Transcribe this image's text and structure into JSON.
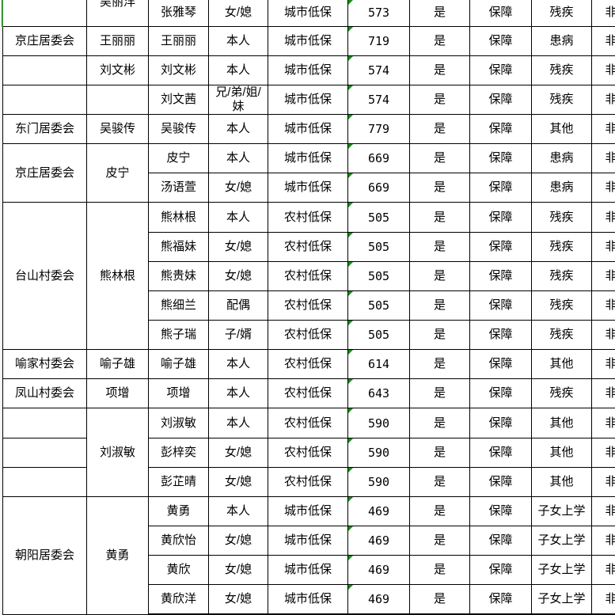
{
  "colors": {
    "border": "#000000",
    "error_indicator_green": "#129212",
    "left_edge_green": "#3c9639",
    "gridline_gray": "#e4e4e4"
  },
  "table": {
    "rows": [
      {
        "partial": true,
        "cells": [
          {
            "text": ""
          },
          {
            "text": "吴丽洋",
            "clipped_top": true
          },
          {
            "text": "张雅琴"
          },
          {
            "text": "女/媳"
          },
          {
            "text": "城市低保"
          },
          {
            "text": "573"
          },
          {
            "text": "是"
          },
          {
            "text": "保障"
          },
          {
            "text": "残疾"
          },
          {
            "text": "非常补"
          }
        ]
      },
      {
        "cells": [
          {
            "text": "京庄居委会"
          },
          {
            "text": "王丽丽"
          },
          {
            "text": "王丽丽"
          },
          {
            "text": "本人"
          },
          {
            "text": "城市低保"
          },
          {
            "text": "719"
          },
          {
            "text": "是"
          },
          {
            "text": "保障"
          },
          {
            "text": "患病"
          },
          {
            "text": "非常补"
          }
        ]
      },
      {
        "cells": [
          {
            "text": ""
          },
          {
            "text": "刘文彬"
          },
          {
            "text": "刘文彬"
          },
          {
            "text": "本人"
          },
          {
            "text": "城市低保"
          },
          {
            "text": "574"
          },
          {
            "text": "是"
          },
          {
            "text": "保障"
          },
          {
            "text": "残疾"
          },
          {
            "text": "非常补"
          }
        ]
      },
      {
        "cells": [
          {
            "text": ""
          },
          {
            "text": ""
          },
          {
            "text": "刘文茜"
          },
          {
            "text": "兄/弟/姐/妹"
          },
          {
            "text": "城市低保"
          },
          {
            "text": "574"
          },
          {
            "text": "是"
          },
          {
            "text": "保障"
          },
          {
            "text": "残疾"
          },
          {
            "text": "非常补"
          }
        ]
      },
      {
        "cells": [
          {
            "text": "东门居委会"
          },
          {
            "text": "吴骏传"
          },
          {
            "text": "吴骏传"
          },
          {
            "text": "本人"
          },
          {
            "text": "城市低保"
          },
          {
            "text": "779"
          },
          {
            "text": "是"
          },
          {
            "text": "保障"
          },
          {
            "text": "其他"
          },
          {
            "text": "非常补"
          }
        ]
      },
      {
        "cells": [
          {
            "text": "京庄居委会",
            "rowspan": 2
          },
          {
            "text": "皮宁",
            "rowspan": 2
          },
          {
            "text": "皮宁"
          },
          {
            "text": "本人"
          },
          {
            "text": "城市低保"
          },
          {
            "text": "669"
          },
          {
            "text": "是"
          },
          {
            "text": "保障"
          },
          {
            "text": "患病"
          },
          {
            "text": "非常补"
          }
        ]
      },
      {
        "cells": [
          {
            "text": "汤语萱"
          },
          {
            "text": "女/媳"
          },
          {
            "text": "城市低保"
          },
          {
            "text": "669"
          },
          {
            "text": "是"
          },
          {
            "text": "保障"
          },
          {
            "text": "患病"
          },
          {
            "text": "非常补"
          }
        ]
      },
      {
        "cells": [
          {
            "text": "台山村委会",
            "rowspan": 5
          },
          {
            "text": "熊林根",
            "rowspan": 5
          },
          {
            "text": "熊林根"
          },
          {
            "text": "本人"
          },
          {
            "text": "农村低保"
          },
          {
            "text": "505"
          },
          {
            "text": "是"
          },
          {
            "text": "保障"
          },
          {
            "text": "残疾"
          },
          {
            "text": "非常补"
          }
        ]
      },
      {
        "cells": [
          {
            "text": "熊福妹"
          },
          {
            "text": "女/媳"
          },
          {
            "text": "农村低保"
          },
          {
            "text": "505"
          },
          {
            "text": "是"
          },
          {
            "text": "保障"
          },
          {
            "text": "残疾"
          },
          {
            "text": "非常补"
          }
        ]
      },
      {
        "cells": [
          {
            "text": "熊贵妹"
          },
          {
            "text": "女/媳"
          },
          {
            "text": "农村低保"
          },
          {
            "text": "505"
          },
          {
            "text": "是"
          },
          {
            "text": "保障"
          },
          {
            "text": "残疾"
          },
          {
            "text": "非常补"
          }
        ]
      },
      {
        "cells": [
          {
            "text": "熊细兰"
          },
          {
            "text": "配偶"
          },
          {
            "text": "农村低保"
          },
          {
            "text": "505"
          },
          {
            "text": "是"
          },
          {
            "text": "保障"
          },
          {
            "text": "残疾"
          },
          {
            "text": "非常补"
          }
        ]
      },
      {
        "cells": [
          {
            "text": "熊子瑞"
          },
          {
            "text": "子/婿"
          },
          {
            "text": "农村低保"
          },
          {
            "text": "505"
          },
          {
            "text": "是"
          },
          {
            "text": "保障"
          },
          {
            "text": "残疾"
          },
          {
            "text": "非常补"
          }
        ]
      },
      {
        "cells": [
          {
            "text": "喻家村委会"
          },
          {
            "text": "喻子雄"
          },
          {
            "text": "喻子雄"
          },
          {
            "text": "本人"
          },
          {
            "text": "农村低保"
          },
          {
            "text": "614"
          },
          {
            "text": "是"
          },
          {
            "text": "保障"
          },
          {
            "text": "其他"
          },
          {
            "text": "非常补"
          }
        ]
      },
      {
        "cells": [
          {
            "text": "凤山村委会"
          },
          {
            "text": "项增"
          },
          {
            "text": "项增"
          },
          {
            "text": "本人"
          },
          {
            "text": "农村低保"
          },
          {
            "text": "643"
          },
          {
            "text": "是"
          },
          {
            "text": "保障"
          },
          {
            "text": "残疾"
          },
          {
            "text": "非常补"
          }
        ]
      },
      {
        "cells": [
          {
            "text": ""
          },
          {
            "text": "刘淑敏",
            "rowspan": 3
          },
          {
            "text": "刘淑敏"
          },
          {
            "text": "本人"
          },
          {
            "text": "农村低保"
          },
          {
            "text": "590"
          },
          {
            "text": "是"
          },
          {
            "text": "保障"
          },
          {
            "text": "其他"
          },
          {
            "text": "非常补"
          }
        ]
      },
      {
        "cells": [
          {
            "text": ""
          },
          {
            "text": "彭梓奕"
          },
          {
            "text": "女/媳"
          },
          {
            "text": "农村低保"
          },
          {
            "text": "590"
          },
          {
            "text": "是"
          },
          {
            "text": "保障"
          },
          {
            "text": "其他"
          },
          {
            "text": "非常补"
          }
        ]
      },
      {
        "cells": [
          {
            "text": ""
          },
          {
            "text": "彭芷晴"
          },
          {
            "text": "女/媳"
          },
          {
            "text": "农村低保"
          },
          {
            "text": "590"
          },
          {
            "text": "是"
          },
          {
            "text": "保障"
          },
          {
            "text": "其他"
          },
          {
            "text": "非常补"
          }
        ]
      },
      {
        "cells": [
          {
            "text": "朝阳居委会",
            "rowspan": 4
          },
          {
            "text": "黄勇",
            "rowspan": 4
          },
          {
            "text": "黄勇"
          },
          {
            "text": "本人"
          },
          {
            "text": "城市低保"
          },
          {
            "text": "469"
          },
          {
            "text": "是"
          },
          {
            "text": "保障"
          },
          {
            "text": "子女上学"
          },
          {
            "text": "非常补"
          }
        ]
      },
      {
        "cells": [
          {
            "text": "黄欣怡"
          },
          {
            "text": "女/媳"
          },
          {
            "text": "城市低保"
          },
          {
            "text": "469"
          },
          {
            "text": "是"
          },
          {
            "text": "保障"
          },
          {
            "text": "子女上学"
          },
          {
            "text": "非常补"
          }
        ]
      },
      {
        "cells": [
          {
            "text": "黄欣"
          },
          {
            "text": "女/媳"
          },
          {
            "text": "城市低保"
          },
          {
            "text": "469"
          },
          {
            "text": "是"
          },
          {
            "text": "保障"
          },
          {
            "text": "子女上学"
          },
          {
            "text": "非常补"
          }
        ]
      },
      {
        "cells": [
          {
            "text": "黄欣洋"
          },
          {
            "text": "女/媳"
          },
          {
            "text": "城市低保"
          },
          {
            "text": "469"
          },
          {
            "text": "是"
          },
          {
            "text": "保障"
          },
          {
            "text": "子女上学"
          },
          {
            "text": "非常补"
          }
        ]
      }
    ]
  }
}
